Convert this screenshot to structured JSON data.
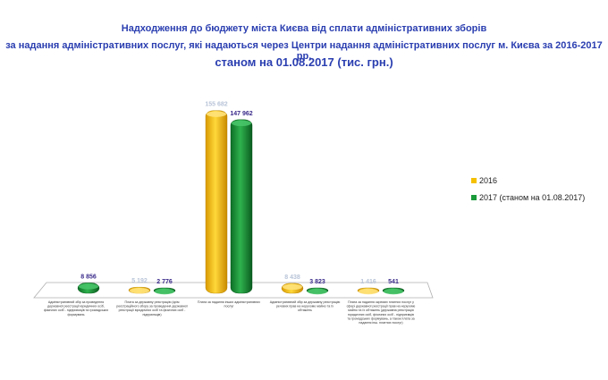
{
  "title": {
    "line1": "Надходження до бюджету міста Києва від сплати адміністративних зборів",
    "line2": "за надання адміністративних послуг, які надаються через Центри надання адміністративних послуг м. Києва за 2016-2017 рр.",
    "line3": "станом на 01.08.2017 (тис. грн.)"
  },
  "colors": {
    "s2016": "#f5c000",
    "s2017": "#1a9a3a",
    "label2016": "#b8c4d8",
    "label2017": "#3a2a8a"
  },
  "chart_data": {
    "type": "bar",
    "title": "Надходження до бюджету міста Києва від сплати адміністративних зборів за надання адміністративних послуг, які надаються через Центри надання адміністративних послуг м. Києва за 2016-2017 рр. станом на 01.08.2017 (тис. грн.)",
    "categories": [
      "Адміністративний збір за проведення державної реєстрації юридичних осіб, фізичних осіб - підприємців та громадських формувань",
      "Плата за державну реєстрацію (крім реєстраційного збору за проведення державної реєстрації юридичних осіб та фізичних осіб - підприємців)",
      "Плата за надання інших адміністративних послуг",
      "Адміністративний збір за державну реєстрацію речових прав на нерухоме майно та їх обтяжень",
      "Плата за надання окремих платних послуг у сфері державної реєстрації прав на нерухоме майно та їх обтяжень (державна реєстрація юридичних осіб, фізичних осіб - підприємців та громадських формувань, а також плата за надання інш. платних послуг)"
    ],
    "series": [
      {
        "name": "2016",
        "values": [
          null,
          5192,
          155682,
          8438,
          1416
        ],
        "labels": [
          "",
          "5 192",
          "155 682",
          "8 438",
          "1 416"
        ]
      },
      {
        "name": "2017 (станом на 01.08.2017)",
        "values": [
          8856,
          2776,
          147962,
          3823,
          541
        ],
        "labels": [
          "8 856",
          "2 776",
          "147 962",
          "3 823",
          "541"
        ]
      }
    ],
    "legend": "right"
  }
}
